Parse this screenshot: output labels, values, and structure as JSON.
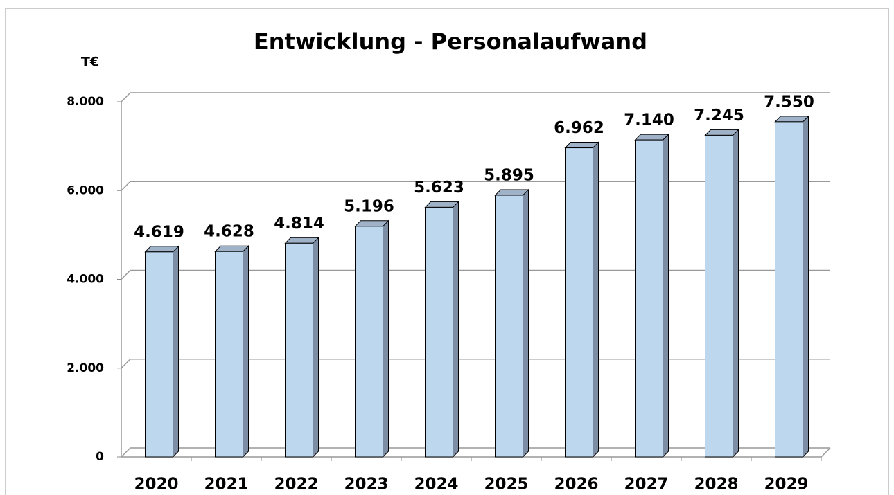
{
  "chart_data": {
    "type": "bar3d",
    "title": "Entwicklung - Personalaufwand",
    "y_label": "T€",
    "categories": [
      "2020",
      "2021",
      "2022",
      "2023",
      "2024",
      "2025",
      "2026",
      "2027",
      "2028",
      "2029"
    ],
    "values": [
      4619,
      4628,
      4814,
      5196,
      5623,
      5895,
      6962,
      7140,
      7245,
      7550
    ],
    "value_labels": [
      "4.619",
      "4.628",
      "4.814",
      "5.196",
      "5.623",
      "5.895",
      "6.962",
      "7.140",
      "7.245",
      "7.550"
    ],
    "color": "#bdd7ee",
    "ylim": [
      0,
      8000
    ],
    "yticks": [
      0,
      {
        "value": 2000,
        "label": "2.000"
      },
      {
        "value": 4000,
        "label": "4.000"
      },
      {
        "value": 6000,
        "label": "6.000"
      },
      {
        "value": 8000,
        "label": "8.000"
      }
    ],
    "grid": true
  }
}
